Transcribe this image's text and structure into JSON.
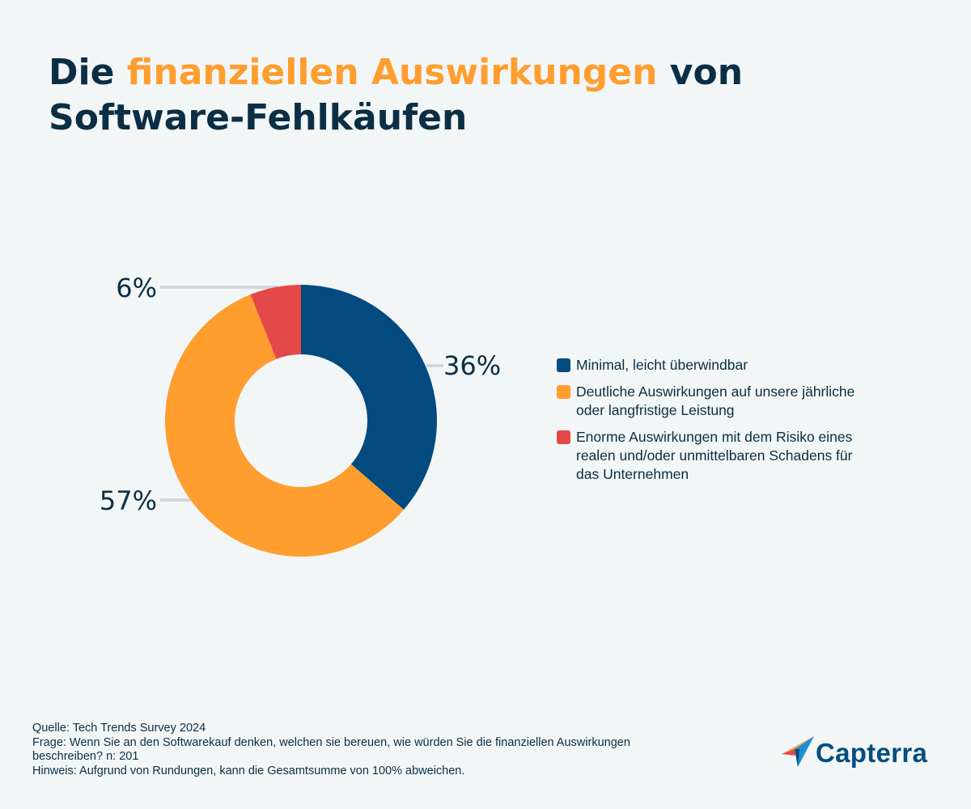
{
  "title": {
    "part1": "Die ",
    "highlight": "finanziellen Auswirkungen",
    "part2": " von",
    "line2": "Software-Fehlkäufen"
  },
  "colors": {
    "dark": "#0b2e44",
    "accent": "#ff9d2e",
    "blue": "#034b7f",
    "red": "#e54848",
    "leader": "#d2d7da"
  },
  "chart_data": {
    "type": "pie",
    "donut": true,
    "series": [
      {
        "name": "Minimal, leicht überwindbar",
        "value": 36,
        "label": "36%",
        "color": "#034b7f"
      },
      {
        "name": "Deutliche Auswirkungen auf unsere jährliche oder langfristige Leistung",
        "value": 57,
        "label": "57%",
        "color": "#ff9d2e"
      },
      {
        "name": "Enorme Auswirkungen mit dem Risiko eines realen und/oder unmittelbaren Schadens für das Unternehmen",
        "value": 6,
        "label": "6%",
        "color": "#e54848"
      }
    ],
    "legend_position": "right"
  },
  "legend": [
    {
      "line1": "Minimal, leicht überwindbar",
      "line2": "",
      "line3": ""
    },
    {
      "line1": "Deutliche Auswirkungen auf unsere jährliche",
      "line2": "oder langfristige Leistung",
      "line3": ""
    },
    {
      "line1": "Enorme Auswirkungen mit dem Risiko eines",
      "line2": "realen und/oder unmittelbaren Schadens für",
      "line3": "das Unternehmen"
    }
  ],
  "footer": {
    "source": "Quelle: Tech Trends Survey 2024",
    "question1": "Frage: Wenn Sie an den Softwarekauf denken, welchen sie bereuen, wie würden Sie die finanziellen Auswirkungen",
    "question2": "beschreiben? n: 201",
    "note": "Hinweis: Aufgrund von Rundungen, kann die Gesamtsumme von 100% abweichen."
  },
  "logo": {
    "text": "Capterra",
    "icon": "capterra-arrow-icon"
  }
}
